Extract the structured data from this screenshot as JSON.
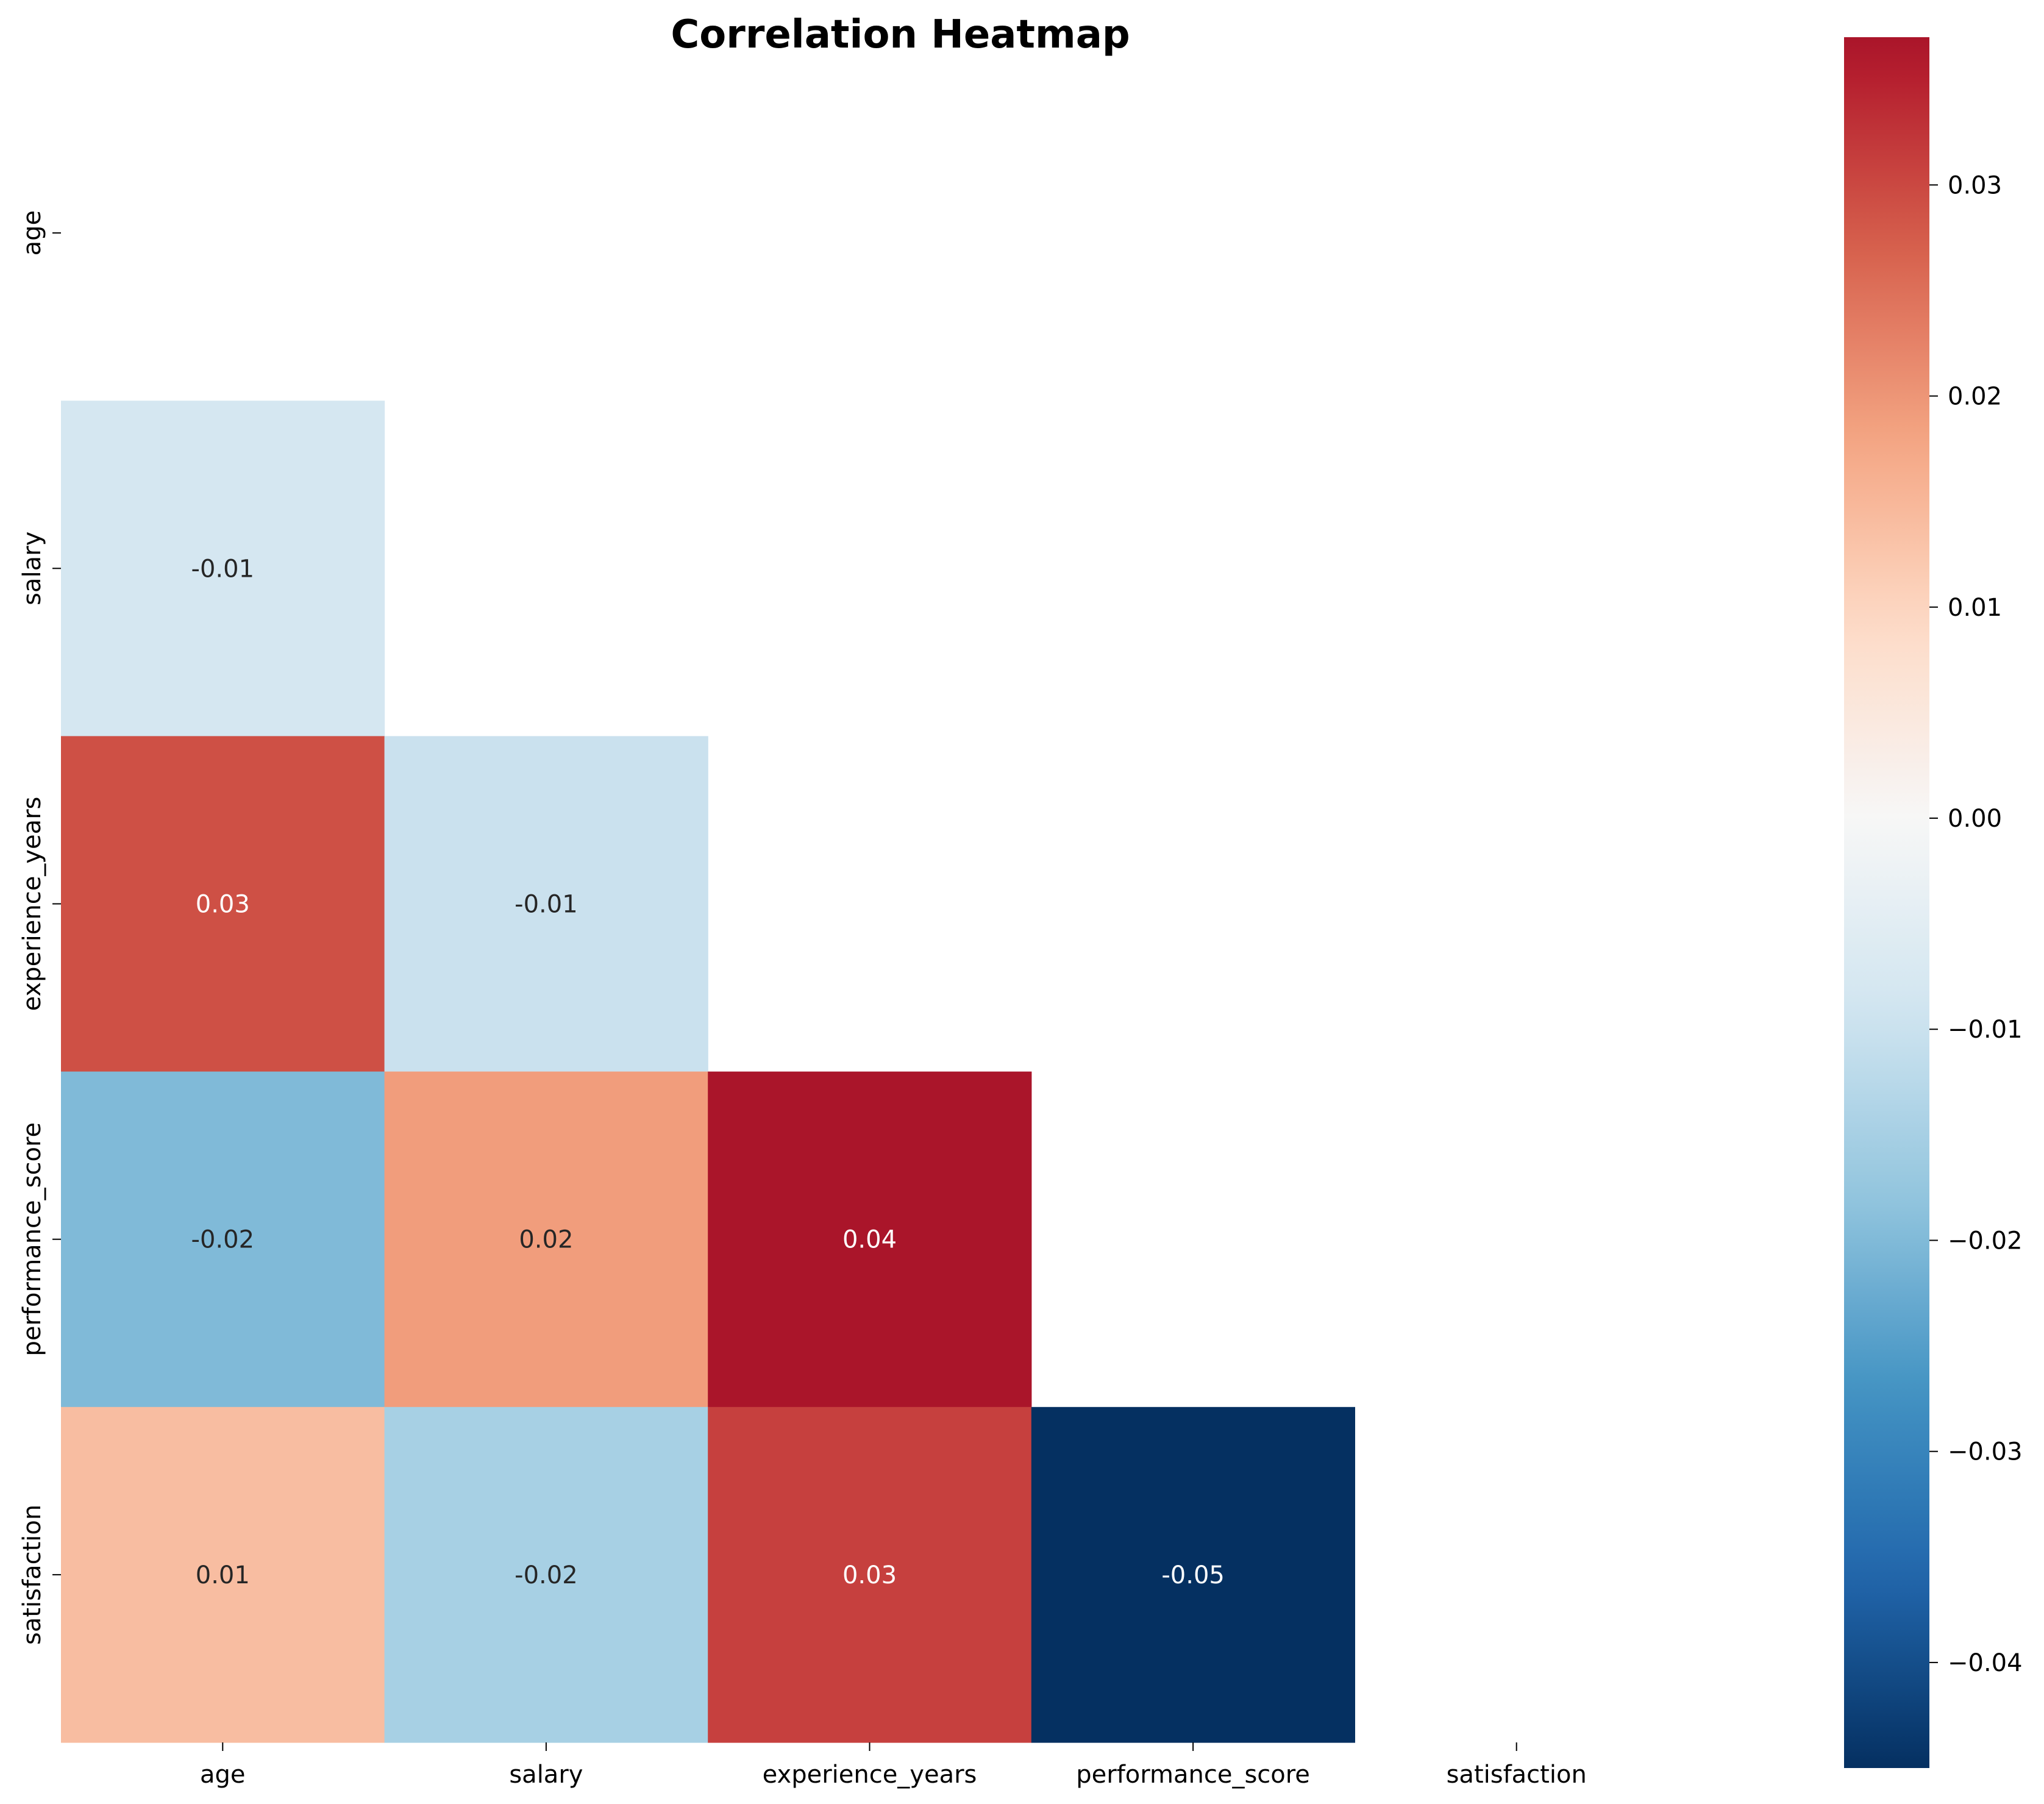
{
  "chart_data": {
    "type": "heatmap",
    "title": "Correlation Heatmap",
    "rows": [
      "age",
      "salary",
      "experience_years",
      "performance_score",
      "satisfaction"
    ],
    "columns": [
      "age",
      "salary",
      "experience_years",
      "performance_score",
      "satisfaction"
    ],
    "mask": "upper-triangle-including-diagonal",
    "cells": [
      {
        "row": "salary",
        "col": "age",
        "value": -0.008,
        "label": "-0.01"
      },
      {
        "row": "experience_years",
        "col": "age",
        "value": 0.029,
        "label": "0.03"
      },
      {
        "row": "experience_years",
        "col": "salary",
        "value": -0.01,
        "label": "-0.01"
      },
      {
        "row": "performance_score",
        "col": "age",
        "value": -0.02,
        "label": "-0.02"
      },
      {
        "row": "performance_score",
        "col": "salary",
        "value": 0.019,
        "label": "0.02"
      },
      {
        "row": "performance_score",
        "col": "experience_years",
        "value": 0.037,
        "label": "0.04"
      },
      {
        "row": "satisfaction",
        "col": "age",
        "value": 0.014,
        "label": "0.01"
      },
      {
        "row": "satisfaction",
        "col": "salary",
        "value": -0.015,
        "label": "-0.02"
      },
      {
        "row": "satisfaction",
        "col": "experience_years",
        "value": 0.031,
        "label": "0.03"
      },
      {
        "row": "satisfaction",
        "col": "performance_score",
        "value": -0.045,
        "label": "-0.05"
      }
    ],
    "colormap": "RdBu_r",
    "colorbar": {
      "vmin": -0.045,
      "vmax": 0.037,
      "ticks": [
        0.03,
        0.02,
        0.01,
        0.0,
        -0.01,
        -0.02,
        -0.03,
        -0.04
      ],
      "tick_labels": [
        "0.03",
        "0.02",
        "0.01",
        "0.00",
        "−0.01",
        "−0.02",
        "−0.03",
        "−0.04"
      ]
    },
    "xlabel": "",
    "ylabel": "",
    "grid": false
  }
}
